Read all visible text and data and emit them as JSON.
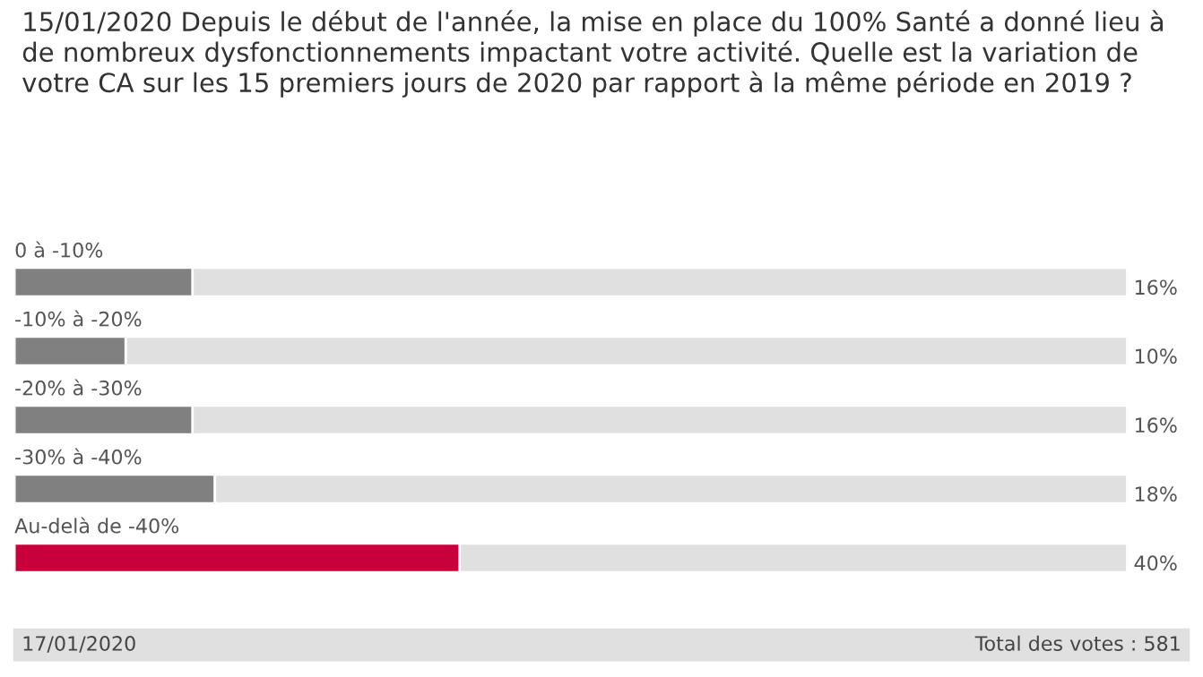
{
  "chart_data": {
    "type": "bar",
    "orientation": "horizontal",
    "title": "15/01/2020 Depuis le début de l'année, la mise en place du 100% Santé a donné lieu à de nombreux dysfonctionnements impactant votre activité. Quelle est la variation de votre CA sur les 15 premiers jours de 2020 par rapport à la même période en 2019 ?",
    "categories": [
      "0 à -10%",
      "-10% à -20%",
      "-20% à -30%",
      "-30% à -40%",
      "Au-delà de -40%"
    ],
    "values": [
      16,
      10,
      16,
      18,
      40
    ],
    "value_labels": [
      "16%",
      "10%",
      "16%",
      "18%",
      "40%"
    ],
    "colors": [
      "#808080",
      "#808080",
      "#808080",
      "#808080",
      "#c8003c"
    ],
    "xlim": [
      0,
      100
    ],
    "tick_labels": false,
    "annotations": [
      "17/01/2020",
      "Total des votes : 581"
    ]
  }
}
